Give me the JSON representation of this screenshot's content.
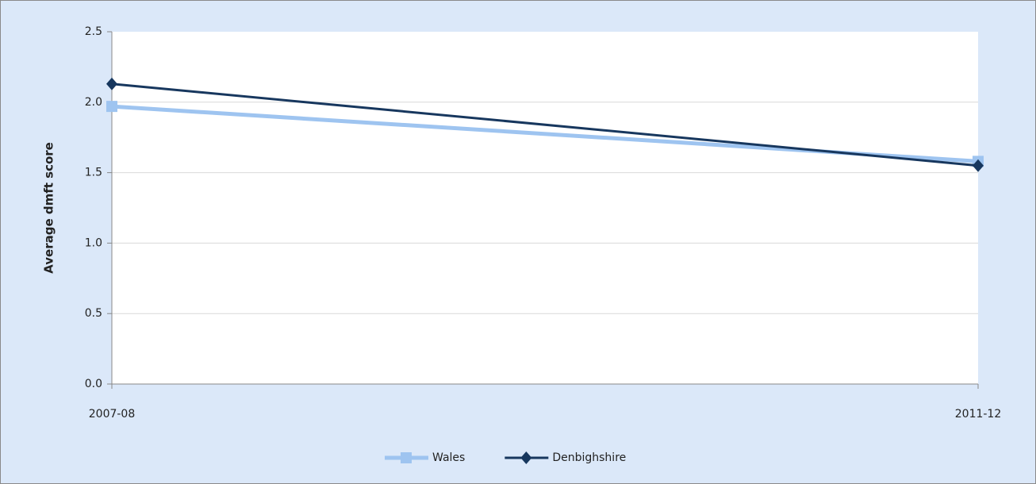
{
  "chart_data": {
    "type": "line",
    "ylabel": "Average dmft score",
    "categories": [
      "2007-08",
      "2011-12"
    ],
    "series": [
      {
        "name": "Wales",
        "color": "#9ec4f0",
        "marker": "square",
        "values": [
          1.97,
          1.58
        ]
      },
      {
        "name": "Denbighshire",
        "color": "#17375e",
        "marker": "diamond",
        "values": [
          2.13,
          1.55
        ]
      }
    ],
    "ylim": [
      0,
      2.5
    ],
    "yticks": [
      {
        "value": 0,
        "label": "0.0"
      },
      0.5,
      {
        "value": 1,
        "label": "1.0"
      },
      1.5,
      {
        "value": 2,
        "label": "2.0"
      },
      2.5
    ],
    "grid": true,
    "legend": "bottom"
  }
}
